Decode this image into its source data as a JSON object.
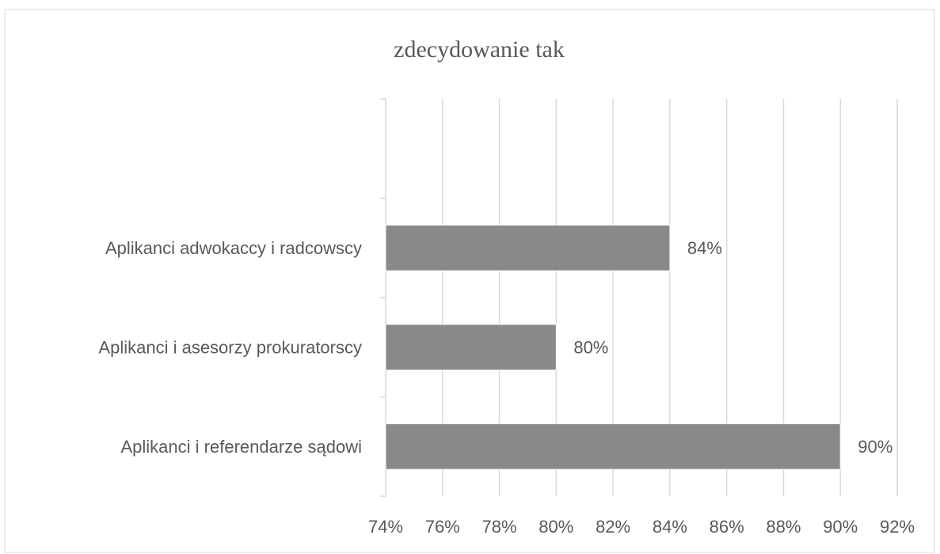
{
  "chart_data": {
    "type": "hbar",
    "title": "zdecydowanie tak",
    "categories": [
      null,
      "Aplikanci adwokaccy i radcowscy",
      "Aplikanci i asesorzy prokuratorscy",
      "Aplikanci i referendarze sądowi"
    ],
    "values": [
      null,
      84,
      80,
      90
    ],
    "value_labels": [
      null,
      "84%",
      "80%",
      "90%"
    ],
    "color": "#898989",
    "xlim": [
      74,
      92
    ],
    "xticks": [
      {
        "value": 74,
        "label": "74%"
      },
      {
        "value": 76,
        "label": "76%"
      },
      {
        "value": 78,
        "label": "78%"
      },
      {
        "value": 80,
        "label": "80%"
      },
      {
        "value": 82,
        "label": "82%"
      },
      {
        "value": 84,
        "label": "84%"
      },
      {
        "value": 86,
        "label": "86%"
      },
      {
        "value": 88,
        "label": "88%"
      },
      {
        "value": 90,
        "label": "90%"
      },
      {
        "value": 92,
        "label": "92%"
      }
    ],
    "grid": true
  }
}
